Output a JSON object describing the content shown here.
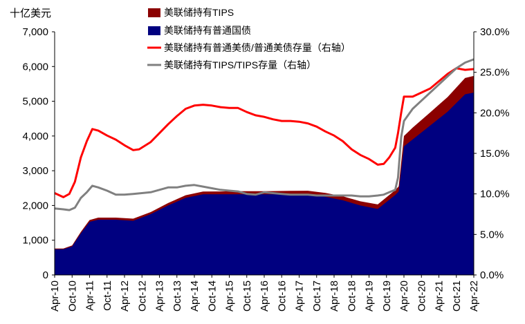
{
  "chart_data": {
    "type": "area",
    "left_axis_unit": "十亿美元",
    "left_ylim": [
      0,
      7000
    ],
    "left_ticks": [
      "0",
      "1,000",
      "2,000",
      "3,000",
      "4,000",
      "5,000",
      "6,000",
      "7,000"
    ],
    "right_ylim": [
      0,
      30
    ],
    "right_ticks": [
      "0.0%",
      "5.0%",
      "10.0%",
      "15.0%",
      "20.0%",
      "25.0%",
      "30.0%"
    ],
    "x_range": [
      2010.25,
      2022.25
    ],
    "x_ticks": [
      "Apr-10",
      "Oct-10",
      "Apr-11",
      "Oct-11",
      "Apr-12",
      "Oct-12",
      "Apr-13",
      "Oct-13",
      "Apr-14",
      "Oct-14",
      "Apr-15",
      "Oct-15",
      "Apr-16",
      "Oct-16",
      "Apr-17",
      "Oct-17",
      "Apr-18",
      "Oct-18",
      "Apr-19",
      "Oct-19",
      "Apr-20",
      "Oct-20",
      "Apr-21",
      "Oct-21",
      "Apr-22"
    ],
    "series": [
      {
        "name": "美联储持有TIPS",
        "axis": "left",
        "kind": "stacked-area",
        "color": "#8B0000",
        "x": [
          2010.25,
          2010.5,
          2010.75,
          2011.0,
          2011.25,
          2011.5,
          2012.0,
          2012.5,
          2013.0,
          2013.5,
          2014.0,
          2014.5,
          2015.0,
          2015.5,
          2016.0,
          2016.5,
          2017.0,
          2017.5,
          2018.0,
          2018.5,
          2019.0,
          2019.5,
          2020.0,
          2020.1,
          2020.25,
          2020.5,
          2021.0,
          2021.5,
          2022.0,
          2022.25
        ],
        "values": [
          20,
          20,
          30,
          40,
          50,
          60,
          60,
          60,
          60,
          70,
          75,
          80,
          85,
          90,
          90,
          95,
          100,
          105,
          110,
          115,
          120,
          130,
          140,
          150,
          300,
          340,
          380,
          420,
          470,
          480
        ]
      },
      {
        "name": "美联储持有普通国债",
        "axis": "left",
        "kind": "stacked-area",
        "color": "#000080",
        "x": [
          2010.25,
          2010.5,
          2010.75,
          2011.0,
          2011.25,
          2011.5,
          2012.0,
          2012.5,
          2013.0,
          2013.5,
          2014.0,
          2014.5,
          2015.0,
          2015.5,
          2016.0,
          2016.5,
          2017.0,
          2017.5,
          2018.0,
          2018.5,
          2019.0,
          2019.5,
          2020.0,
          2020.1,
          2020.25,
          2020.5,
          2021.0,
          2021.5,
          2022.0,
          2022.25
        ],
        "values": [
          740,
          740,
          820,
          1200,
          1530,
          1590,
          1590,
          1560,
          1750,
          2000,
          2220,
          2320,
          2320,
          2320,
          2320,
          2320,
          2320,
          2320,
          2250,
          2150,
          2000,
          1900,
          2300,
          2400,
          3700,
          3900,
          4300,
          4700,
          5200,
          5250
        ]
      },
      {
        "name": "美联储持有普通美债/普通美债存量（右轴）",
        "axis": "right",
        "kind": "line",
        "color": "#FF0000",
        "x": [
          2010.25,
          2010.5,
          2010.67,
          2010.83,
          2011.0,
          2011.17,
          2011.33,
          2011.5,
          2011.75,
          2012.0,
          2012.25,
          2012.5,
          2012.67,
          2013.0,
          2013.25,
          2013.5,
          2013.75,
          2014.0,
          2014.25,
          2014.5,
          2014.75,
          2015.0,
          2015.25,
          2015.5,
          2015.75,
          2016.0,
          2016.25,
          2016.5,
          2016.75,
          2017.0,
          2017.25,
          2017.5,
          2017.75,
          2018.0,
          2018.25,
          2018.5,
          2018.75,
          2019.0,
          2019.25,
          2019.5,
          2019.67,
          2019.83,
          2020.0,
          2020.08,
          2020.17,
          2020.25,
          2020.5,
          2020.75,
          2021.0,
          2021.25,
          2021.5,
          2021.75,
          2022.0,
          2022.25
        ],
        "values": [
          10.1,
          9.6,
          10.0,
          11.5,
          14.5,
          16.5,
          18.0,
          17.8,
          17.2,
          16.7,
          16.0,
          15.4,
          15.5,
          16.4,
          17.5,
          18.6,
          19.6,
          20.5,
          20.9,
          21.0,
          20.9,
          20.7,
          20.6,
          20.6,
          20.1,
          19.7,
          19.5,
          19.2,
          19.0,
          19.0,
          18.9,
          18.7,
          18.3,
          17.7,
          17.2,
          16.5,
          15.5,
          14.8,
          14.3,
          13.6,
          13.7,
          14.5,
          15.7,
          17.5,
          20.0,
          22.0,
          22.0,
          22.5,
          23.0,
          23.9,
          24.8,
          25.5,
          25.3,
          25.4
        ]
      },
      {
        "name": "美联储持有TIPS/TIPS存量（右轴）",
        "axis": "right",
        "kind": "line",
        "color": "#808080",
        "x": [
          2010.25,
          2010.5,
          2010.67,
          2010.83,
          2011.0,
          2011.17,
          2011.33,
          2011.5,
          2011.75,
          2012.0,
          2012.25,
          2012.5,
          2012.75,
          2013.0,
          2013.25,
          2013.5,
          2013.75,
          2014.0,
          2014.25,
          2014.5,
          2014.75,
          2015.0,
          2015.25,
          2015.5,
          2015.75,
          2016.0,
          2016.25,
          2016.5,
          2016.75,
          2017.0,
          2017.25,
          2017.5,
          2017.75,
          2018.0,
          2018.25,
          2018.5,
          2018.75,
          2019.0,
          2019.25,
          2019.5,
          2019.67,
          2019.83,
          2020.0,
          2020.08,
          2020.17,
          2020.25,
          2020.5,
          2020.75,
          2021.0,
          2021.25,
          2021.5,
          2021.75,
          2022.0,
          2022.25
        ],
        "values": [
          8.2,
          8.1,
          8.0,
          8.3,
          9.5,
          10.2,
          11.0,
          10.8,
          10.4,
          9.9,
          9.9,
          10.0,
          10.1,
          10.2,
          10.5,
          10.8,
          10.8,
          11.0,
          11.1,
          10.9,
          10.7,
          10.5,
          10.4,
          10.3,
          10.0,
          9.9,
          10.2,
          10.1,
          10.0,
          9.9,
          9.9,
          9.9,
          9.8,
          9.8,
          9.8,
          9.8,
          9.8,
          9.7,
          9.7,
          9.8,
          9.9,
          10.2,
          10.5,
          12.0,
          17.0,
          19.0,
          20.5,
          21.5,
          22.5,
          23.5,
          24.5,
          25.5,
          26.2,
          26.6
        ]
      }
    ],
    "legend": [
      "美联储持有TIPS",
      "美联储持有普通国债",
      "美联储持有普通美债/普通美债存量（右轴）",
      "美联储持有TIPS/TIPS存量（右轴）"
    ]
  }
}
